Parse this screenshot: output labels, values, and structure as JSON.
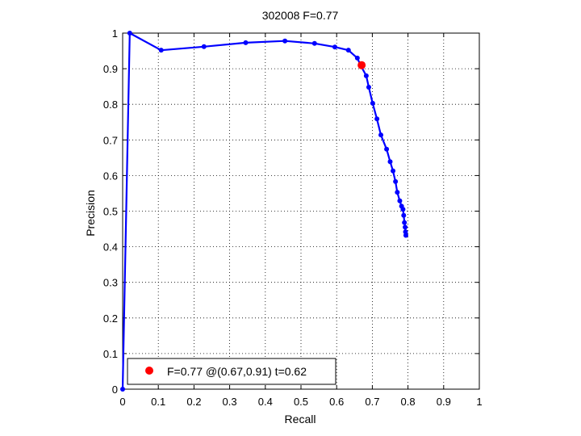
{
  "chart_data": {
    "type": "line",
    "title": "302008 F=0.77",
    "xlabel": "Recall",
    "ylabel": "Precision",
    "xlim": [
      0,
      1
    ],
    "ylim": [
      0,
      1
    ],
    "xticks": [
      "0",
      "0.1",
      "0.2",
      "0.3",
      "0.4",
      "0.5",
      "0.6",
      "0.7",
      "0.8",
      "0.9",
      "1"
    ],
    "yticks": [
      "0",
      "0.1",
      "0.2",
      "0.3",
      "0.4",
      "0.5",
      "0.6",
      "0.7",
      "0.8",
      "0.9",
      "1"
    ],
    "grid": true,
    "grid_style": "dotted",
    "legend_position": "bottom-left",
    "series": [
      {
        "color": "#0000ff",
        "points": [
          [
            0.0,
            0.0
          ],
          [
            0.02,
            1.0
          ],
          [
            0.108,
            0.952
          ],
          [
            0.228,
            0.962
          ],
          [
            0.345,
            0.973
          ],
          [
            0.455,
            0.978
          ],
          [
            0.538,
            0.971
          ],
          [
            0.595,
            0.961
          ],
          [
            0.633,
            0.952
          ],
          [
            0.658,
            0.93
          ],
          [
            0.667,
            0.91
          ],
          [
            0.683,
            0.88
          ],
          [
            0.69,
            0.848
          ],
          [
            0.701,
            0.803
          ],
          [
            0.713,
            0.759
          ],
          [
            0.724,
            0.714
          ],
          [
            0.74,
            0.674
          ],
          [
            0.75,
            0.639
          ],
          [
            0.758,
            0.613
          ],
          [
            0.765,
            0.583
          ],
          [
            0.77,
            0.553
          ],
          [
            0.777,
            0.529
          ],
          [
            0.782,
            0.514
          ],
          [
            0.786,
            0.505
          ],
          [
            0.788,
            0.488
          ],
          [
            0.79,
            0.468
          ],
          [
            0.792,
            0.455
          ],
          [
            0.793,
            0.442
          ],
          [
            0.794,
            0.432
          ]
        ]
      }
    ],
    "best_point": {
      "x": 0.67,
      "y": 0.91,
      "color": "#ff0000"
    },
    "legend": {
      "label": "F=0.77 @(0.67,0.91) t=0.62",
      "marker_color": "#ff0000"
    }
  }
}
